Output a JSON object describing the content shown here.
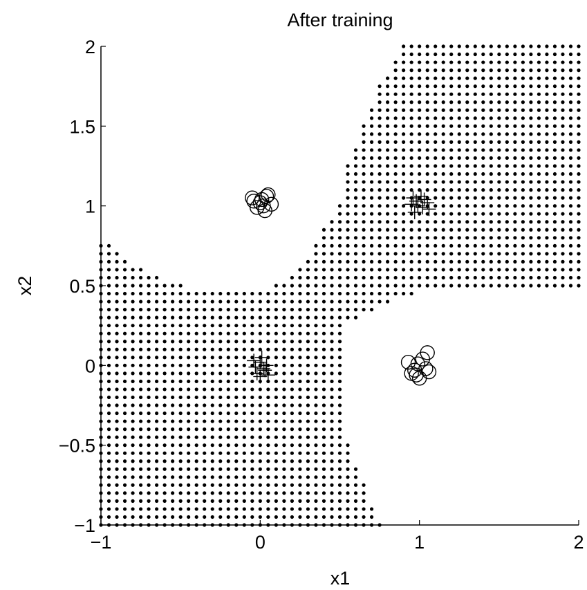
{
  "chart_data": {
    "type": "scatter",
    "title": "After training",
    "xlabel": "x1",
    "ylabel": "x2",
    "xlim": [
      -1,
      2
    ],
    "ylim": [
      -1,
      2
    ],
    "xticks": [
      -1,
      0,
      1,
      2
    ],
    "yticks": [
      -1,
      -0.5,
      0,
      0.5,
      1,
      1.5,
      2
    ],
    "xtick_labels": [
      "−1",
      "0",
      "1",
      "2"
    ],
    "ytick_labels": [
      "−1",
      "−0.5",
      "0",
      "0.5",
      "1",
      "1.5",
      "2"
    ],
    "grid": false,
    "decision_region": {
      "marker": "dot",
      "spacing": 0.05,
      "boundary": [
        {
          "x2": -1.0,
          "x1_min": -1.0,
          "x1_max": 0.75,
          "upper_x1_min": null
        },
        {
          "x2": -0.75,
          "x1_min": -1.0,
          "x1_max": 0.65,
          "upper_x1_min": null
        },
        {
          "x2": -0.5,
          "x1_min": -1.0,
          "x1_max": 0.55,
          "upper_x1_min": null
        },
        {
          "x2": -0.25,
          "x1_min": -1.0,
          "x1_max": 0.5,
          "upper_x1_min": null
        },
        {
          "x2": 0.0,
          "x1_min": -1.0,
          "x1_max": 0.5,
          "upper_x1_min": null
        },
        {
          "x2": 0.25,
          "x1_min": -1.0,
          "x1_max": 0.5,
          "upper_x1_min": null
        },
        {
          "x2": 0.45,
          "x1_min": -1.0,
          "x1_max": 0.95,
          "upper_x1_min": null
        },
        {
          "x2": 0.5,
          "x1_min": -1.0,
          "x1_max": -0.5,
          "upper_x1_min": 0.1
        },
        {
          "x2": 0.6,
          "x1_min": -1.0,
          "x1_max": -0.75,
          "upper_x1_min": 0.25
        },
        {
          "x2": 0.75,
          "x1_min": -1.0,
          "x1_max": -0.95,
          "upper_x1_min": 0.35
        },
        {
          "x2": 0.85,
          "x1_min": null,
          "x1_max": null,
          "upper_x1_min": 0.4
        },
        {
          "x2": 1.0,
          "x1_min": null,
          "x1_max": null,
          "upper_x1_min": 0.5
        },
        {
          "x2": 1.25,
          "x1_min": null,
          "x1_max": null,
          "upper_x1_min": 0.55
        },
        {
          "x2": 1.5,
          "x1_min": null,
          "x1_max": null,
          "upper_x1_min": 0.65
        },
        {
          "x2": 1.75,
          "x1_min": null,
          "x1_max": null,
          "upper_x1_min": 0.75
        },
        {
          "x2": 2.0,
          "x1_min": null,
          "x1_max": null,
          "upper_x1_min": 0.9
        }
      ]
    },
    "series": [
      {
        "marker": "circle",
        "points": [
          [
            -0.05,
            1.05
          ],
          [
            0.0,
            1.02
          ],
          [
            0.04,
            1.06
          ],
          [
            -0.02,
            0.99
          ],
          [
            0.03,
            0.97
          ],
          [
            0.07,
            1.01
          ],
          [
            -0.04,
            1.03
          ],
          [
            0.01,
            1.04
          ],
          [
            0.05,
            1.07
          ],
          [
            0.02,
            1.0
          ],
          [
            0.93,
            0.02
          ],
          [
            0.97,
            -0.03
          ],
          [
            1.02,
            0.04
          ],
          [
            1.05,
            0.08
          ],
          [
            0.95,
            -0.05
          ],
          [
            1.0,
            -0.08
          ],
          [
            1.04,
            -0.02
          ],
          [
            0.99,
            0.01
          ],
          [
            1.06,
            -0.04
          ],
          [
            0.98,
            -0.06
          ]
        ]
      },
      {
        "marker": "plus",
        "points": [
          [
            0.0,
            0.02
          ],
          [
            0.03,
            -0.03
          ],
          [
            -0.03,
            -0.01
          ],
          [
            0.01,
            0.05
          ],
          [
            0.05,
            -0.06
          ],
          [
            -0.02,
            -0.05
          ],
          [
            0.04,
            0.0
          ],
          [
            0.0,
            -0.07
          ],
          [
            -0.04,
            0.03
          ],
          [
            0.02,
            -0.02
          ],
          [
            0.98,
            1.03
          ],
          [
            1.02,
            0.99
          ],
          [
            0.95,
            1.01
          ],
          [
            1.01,
            1.06
          ],
          [
            1.05,
            1.02
          ],
          [
            0.97,
            0.96
          ],
          [
            1.03,
            1.04
          ],
          [
            0.99,
            1.0
          ],
          [
            1.06,
            0.98
          ],
          [
            0.96,
            1.05
          ]
        ]
      }
    ]
  }
}
